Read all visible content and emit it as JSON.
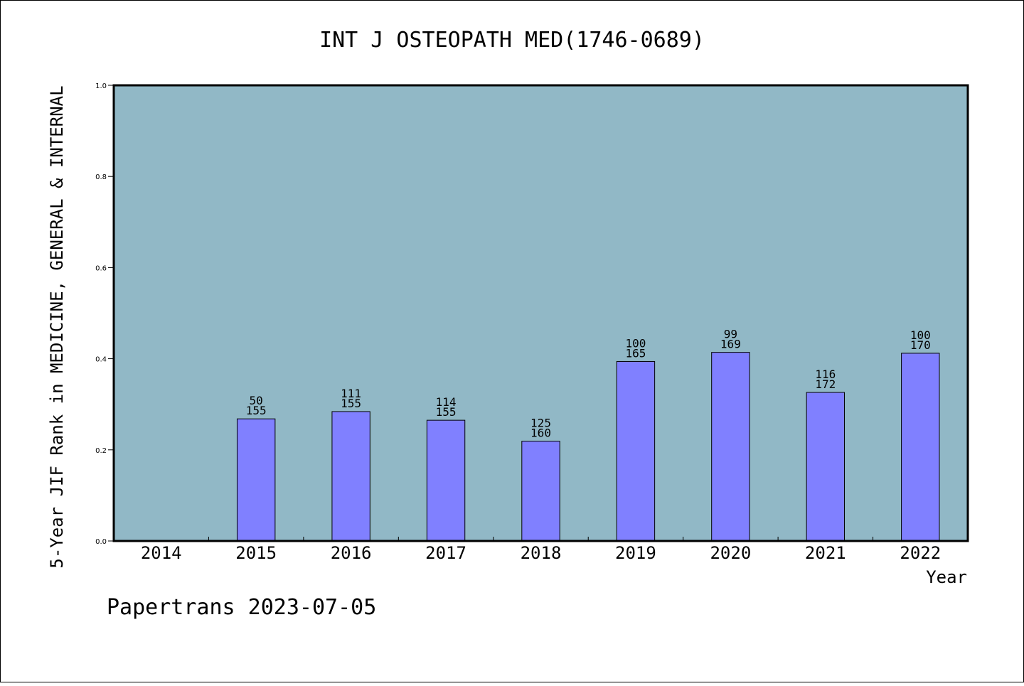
{
  "chart_data": {
    "type": "bar",
    "title": "INT J OSTEOPATH MED(1746-0689)",
    "xlabel": "Year",
    "ylabel": "5-Year JIF Rank in MEDICINE, GENERAL & INTERNAL",
    "footer": "Papertrans 2023-07-05",
    "categories": [
      "2014",
      "2015",
      "2016",
      "2017",
      "2018",
      "2019",
      "2020",
      "2021",
      "2022"
    ],
    "values": [
      null,
      0.268,
      0.284,
      0.265,
      0.219,
      0.394,
      0.414,
      0.326,
      0.412
    ],
    "labels_top": [
      "",
      "50",
      "111",
      "114",
      "125",
      "100",
      "99",
      "116",
      "100"
    ],
    "labels_bottom": [
      "",
      "155",
      "155",
      "155",
      "160",
      "165",
      "169",
      "172",
      "170"
    ],
    "ylim": [
      0,
      1.0
    ],
    "yticks": [
      "0.0",
      "0.2",
      "0.4",
      "0.6",
      "0.8",
      "1.0"
    ],
    "grid": false,
    "colors": {
      "plot_background": "#91b8c6",
      "bar": "#8080ff",
      "frame": "#000000"
    }
  }
}
